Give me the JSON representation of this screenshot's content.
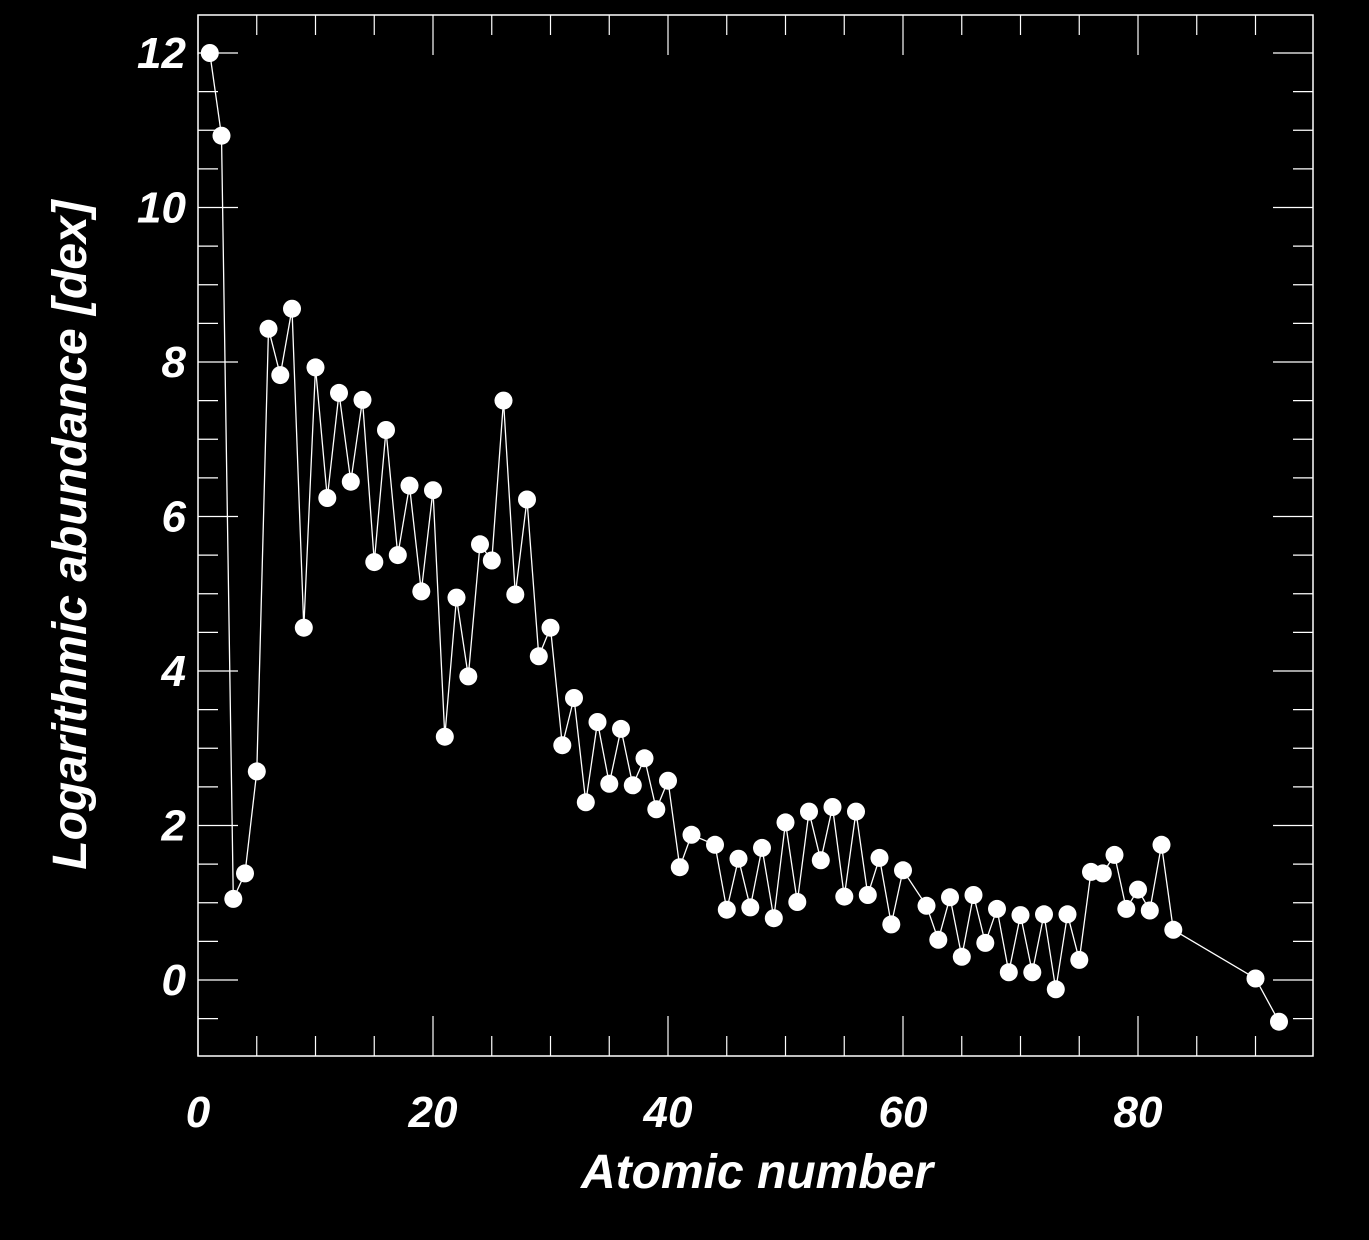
{
  "chart_data": {
    "type": "line",
    "title": "",
    "xlabel": "Atomic number",
    "ylabel": "Logarithmic abundance [dex]",
    "xlim": [
      0,
      95
    ],
    "ylim": [
      -1,
      12.5
    ],
    "x_ticks": [
      0,
      20,
      40,
      60,
      80
    ],
    "y_ticks": [
      0,
      2,
      4,
      6,
      8,
      10,
      12
    ],
    "x_minor_step": 5,
    "y_minor_step": 0.5,
    "grid": false,
    "legend": "none",
    "colors": {
      "background": "#000000",
      "foreground": "#ffffff"
    },
    "series": [
      {
        "marker": "filled-circle",
        "points": [
          [
            1,
            12.0
          ],
          [
            2,
            10.93
          ],
          [
            3,
            1.05
          ],
          [
            4,
            1.38
          ],
          [
            5,
            2.7
          ],
          [
            6,
            8.43
          ],
          [
            7,
            7.83
          ],
          [
            8,
            8.69
          ],
          [
            9,
            4.56
          ],
          [
            10,
            7.93
          ],
          [
            11,
            6.24
          ],
          [
            12,
            7.6
          ],
          [
            13,
            6.45
          ],
          [
            14,
            7.51
          ],
          [
            15,
            5.41
          ],
          [
            16,
            7.12
          ],
          [
            17,
            5.5
          ],
          [
            18,
            6.4
          ],
          [
            19,
            5.03
          ],
          [
            20,
            6.34
          ],
          [
            21,
            3.15
          ],
          [
            22,
            4.95
          ],
          [
            23,
            3.93
          ],
          [
            24,
            5.64
          ],
          [
            25,
            5.43
          ],
          [
            26,
            7.5
          ],
          [
            27,
            4.99
          ],
          [
            28,
            6.22
          ],
          [
            29,
            4.19
          ],
          [
            30,
            4.56
          ],
          [
            31,
            3.04
          ],
          [
            32,
            3.65
          ],
          [
            33,
            2.3
          ],
          [
            34,
            3.34
          ],
          [
            35,
            2.54
          ],
          [
            36,
            3.25
          ],
          [
            37,
            2.52
          ],
          [
            38,
            2.87
          ],
          [
            39,
            2.21
          ],
          [
            40,
            2.58
          ],
          [
            41,
            1.46
          ],
          [
            42,
            1.88
          ],
          [
            44,
            1.75
          ],
          [
            45,
            0.91
          ],
          [
            46,
            1.57
          ],
          [
            47,
            0.94
          ],
          [
            48,
            1.71
          ],
          [
            49,
            0.8
          ],
          [
            50,
            2.04
          ],
          [
            51,
            1.01
          ],
          [
            52,
            2.18
          ],
          [
            53,
            1.55
          ],
          [
            54,
            2.24
          ],
          [
            55,
            1.08
          ],
          [
            56,
            2.18
          ],
          [
            57,
            1.1
          ],
          [
            58,
            1.58
          ],
          [
            59,
            0.72
          ],
          [
            60,
            1.42
          ],
          [
            62,
            0.96
          ],
          [
            63,
            0.52
          ],
          [
            64,
            1.07
          ],
          [
            65,
            0.3
          ],
          [
            66,
            1.1
          ],
          [
            67,
            0.48
          ],
          [
            68,
            0.92
          ],
          [
            69,
            0.1
          ],
          [
            70,
            0.84
          ],
          [
            71,
            0.1
          ],
          [
            72,
            0.85
          ],
          [
            73,
            -0.12
          ],
          [
            74,
            0.85
          ],
          [
            75,
            0.26
          ],
          [
            76,
            1.4
          ],
          [
            77,
            1.38
          ],
          [
            78,
            1.62
          ],
          [
            79,
            0.92
          ],
          [
            80,
            1.17
          ],
          [
            81,
            0.9
          ],
          [
            82,
            1.75
          ],
          [
            83,
            0.65
          ],
          [
            90,
            0.02
          ],
          [
            92,
            -0.54
          ]
        ]
      }
    ]
  }
}
